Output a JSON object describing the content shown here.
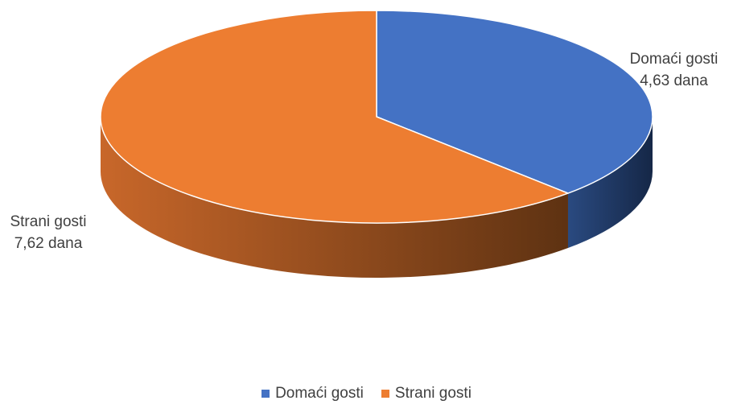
{
  "chart_data": {
    "type": "pie",
    "style": "3d",
    "categories": [
      "Domaći gosti",
      "Strani gosti"
    ],
    "values": [
      4.63,
      7.62
    ],
    "unit": "dana",
    "data_labels": [
      {
        "name": "Domaći gosti",
        "value_text": "4,63 dana"
      },
      {
        "name": "Strani gosti",
        "value_text": "7,62 dana"
      }
    ],
    "colors": [
      "#4472C4",
      "#ED7D31"
    ],
    "side_colors": {
      "Domaći gosti": {
        "light": "#2A4A80",
        "dark": "#152747"
      },
      "Strani gosti": {
        "light": "#C8672A",
        "dark": "#5E3212"
      }
    },
    "legend": {
      "position": "bottom",
      "entries": [
        "Domaći gosti",
        "Strani gosti"
      ]
    }
  }
}
